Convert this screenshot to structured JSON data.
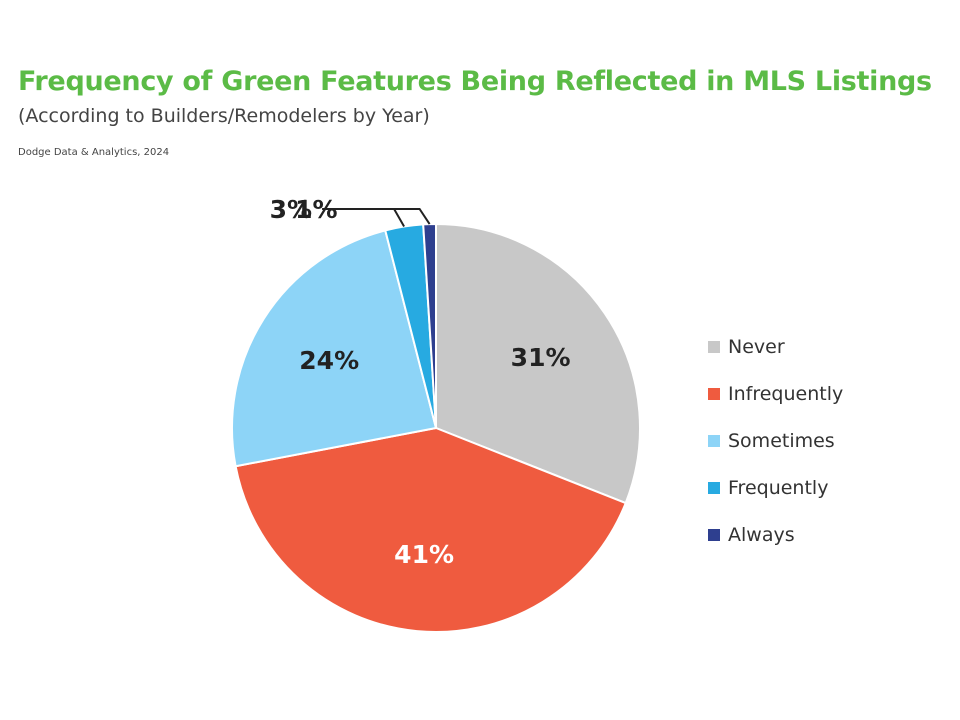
{
  "header": {
    "title": "Frequency of Green Features Being Reflected in MLS Listings",
    "subtitle": "(According to Builders/Remodelers by Year)",
    "source": "Dodge Data & Analytics, 2024"
  },
  "chart_data": {
    "type": "pie",
    "title": "Frequency of Green Features Being Reflected in MLS Listings",
    "subtitle": "(According to Builders/Remodelers by Year)",
    "legend_position": "right",
    "categories": [
      "Never",
      "Infrequently",
      "Sometimes",
      "Frequently",
      "Always"
    ],
    "values": [
      31,
      41,
      24,
      3,
      1
    ],
    "labels": [
      "31%",
      "41%",
      "24%",
      "3%",
      "1%"
    ],
    "colors": [
      "#c8c8c8",
      "#ef5b3f",
      "#8dd4f7",
      "#27aae1",
      "#2e3f8f"
    ],
    "label_colors": [
      "#222222",
      "#ffffff",
      "#222222",
      "#222222",
      "#222222"
    ]
  }
}
